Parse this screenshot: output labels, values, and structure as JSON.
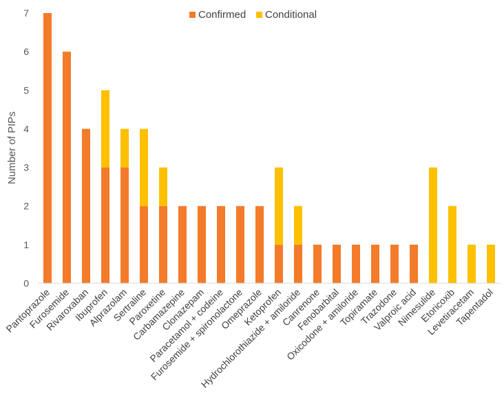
{
  "chart_data": {
    "type": "bar",
    "stacked": true,
    "title": "",
    "xlabel": "",
    "ylabel": "Number of PIPs",
    "ylim": [
      0,
      7
    ],
    "yticks": [
      0,
      1,
      2,
      3,
      4,
      5,
      6,
      7
    ],
    "grid": false,
    "legend_position": "top",
    "categories": [
      "Pantoprazole",
      "Furosemide",
      "Rivaroxaban",
      "Ibuprofen",
      "Alprazolam",
      "Sertraline",
      "Paroxetine",
      "Carbamazepine",
      "Clonazepam",
      "Paracetamol + codeine",
      "Furosemide + spironolactone",
      "Omeprazole",
      "Ketoprofen",
      "Hydrochlorothiazide + amiloride",
      "Canrenone",
      "Fenobarbital",
      "Oxicodone + amiloride",
      "Topiramate",
      "Trazodone",
      "Valproic acid",
      "Nimesulide",
      "Etoricoxib",
      "Levetiracetam",
      "Tapentadol"
    ],
    "series": [
      {
        "name": "Confirmed",
        "color": "#F47B2A",
        "values": [
          7,
          6,
          4,
          3,
          3,
          2,
          2,
          2,
          2,
          2,
          2,
          2,
          1,
          1,
          1,
          1,
          1,
          1,
          1,
          1,
          0,
          0,
          0,
          0
        ]
      },
      {
        "name": "Conditional",
        "color": "#FFC000",
        "values": [
          0,
          0,
          0,
          2,
          1,
          2,
          1,
          0,
          0,
          0,
          0,
          0,
          2,
          1,
          0,
          0,
          0,
          0,
          0,
          0,
          3,
          2,
          1,
          1
        ]
      }
    ]
  }
}
